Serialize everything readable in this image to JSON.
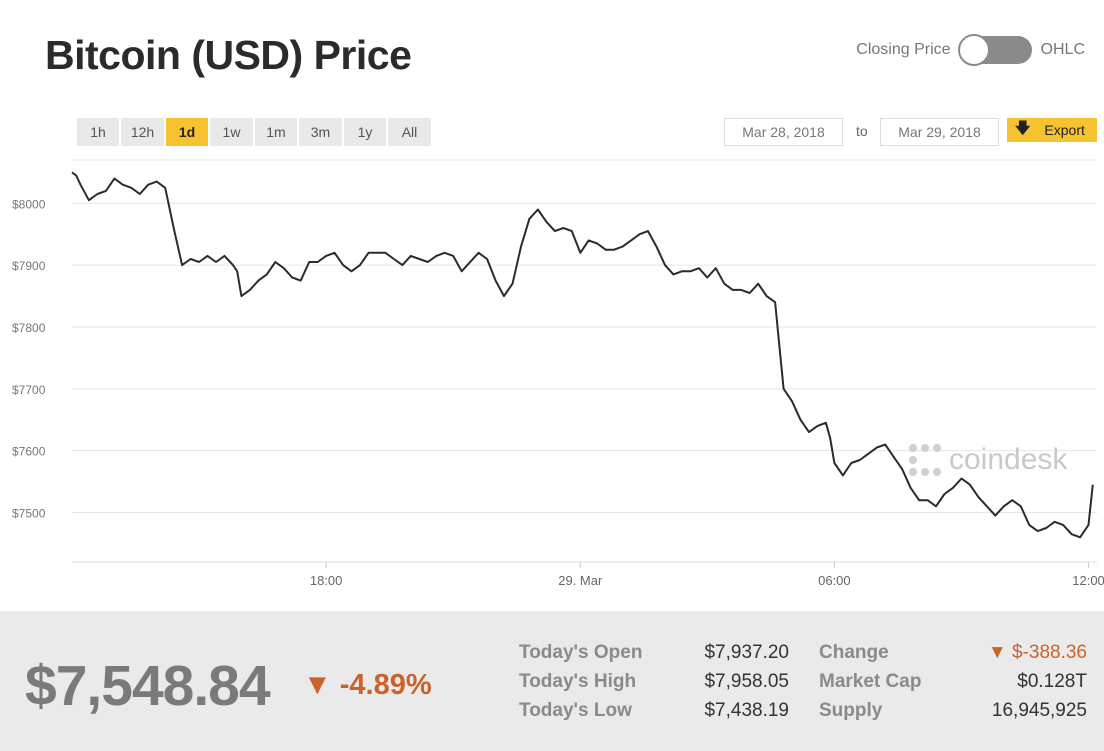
{
  "header": {
    "title": "Bitcoin (USD) Price",
    "toggle_left": "Closing Price",
    "toggle_right": "OHLC"
  },
  "ranges": [
    "1h",
    "12h",
    "1d",
    "1w",
    "1m",
    "3m",
    "1y",
    "All"
  ],
  "active_range": "1d",
  "date_from": "Mar 28, 2018",
  "date_to_label": "to",
  "date_to": "Mar 29, 2018",
  "export_label": "Export",
  "watermark": "coindesk",
  "colors": {
    "accent": "#f7c230",
    "negative": "#c9632a",
    "line": "#2b2b2b"
  },
  "chart_data": {
    "type": "line",
    "y_ticks": [
      "$8000",
      "$7900",
      "$7800",
      "$7700",
      "$7600",
      "$7500"
    ],
    "x_ticks": [
      "18:00",
      "29. Mar",
      "06:00",
      "12:00"
    ],
    "ylim": [
      7420,
      8070
    ],
    "x_range_hours": [
      0,
      24.2
    ],
    "x_tick_hours": [
      6,
      12,
      18,
      24
    ],
    "series": [
      {
        "x_hours": [
          0,
          0.1,
          0.2,
          0.4,
          0.6,
          0.8,
          1.0,
          1.2,
          1.4,
          1.6,
          1.8,
          2.0,
          2.2,
          2.4,
          2.6,
          2.8,
          3.0,
          3.2,
          3.4,
          3.6,
          3.8,
          3.9,
          4.0,
          4.2,
          4.4,
          4.6,
          4.8,
          5.0,
          5.2,
          5.4,
          5.6,
          5.8,
          6.0,
          6.2,
          6.4,
          6.6,
          6.8,
          7.0,
          7.2,
          7.4,
          7.6,
          7.8,
          8.0,
          8.2,
          8.4,
          8.6,
          8.8,
          9.0,
          9.2,
          9.4,
          9.6,
          9.8,
          10.0,
          10.2,
          10.4,
          10.6,
          10.8,
          11.0,
          11.2,
          11.4,
          11.6,
          11.8,
          12.0,
          12.2,
          12.4,
          12.6,
          12.8,
          13.0,
          13.2,
          13.4,
          13.6,
          13.8,
          14.0,
          14.2,
          14.4,
          14.6,
          14.8,
          15.0,
          15.2,
          15.4,
          15.6,
          15.8,
          16.0,
          16.2,
          16.4,
          16.6,
          16.8,
          17.0,
          17.2,
          17.4,
          17.6,
          17.8,
          17.9,
          18.0,
          18.2,
          18.4,
          18.6,
          18.8,
          19.0,
          19.2,
          19.4,
          19.6,
          19.8,
          20.0,
          20.2,
          20.4,
          20.6,
          20.8,
          21.0,
          21.2,
          21.4,
          21.6,
          21.8,
          22.0,
          22.2,
          22.4,
          22.6,
          22.8,
          23.0,
          23.2,
          23.4,
          23.6,
          23.8,
          24.0,
          24.1
        ],
        "values": [
          8050,
          8045,
          8030,
          8005,
          8015,
          8020,
          8040,
          8030,
          8025,
          8015,
          8030,
          8035,
          8025,
          7960,
          7900,
          7910,
          7905,
          7915,
          7905,
          7915,
          7900,
          7890,
          7850,
          7860,
          7875,
          7885,
          7905,
          7895,
          7880,
          7875,
          7905,
          7905,
          7915,
          7920,
          7900,
          7890,
          7900,
          7920,
          7920,
          7920,
          7910,
          7900,
          7915,
          7910,
          7905,
          7915,
          7920,
          7915,
          7890,
          7905,
          7920,
          7910,
          7875,
          7850,
          7870,
          7930,
          7975,
          7990,
          7970,
          7955,
          7960,
          7955,
          7920,
          7940,
          7935,
          7925,
          7925,
          7930,
          7940,
          7950,
          7955,
          7930,
          7900,
          7885,
          7890,
          7890,
          7895,
          7880,
          7895,
          7870,
          7860,
          7860,
          7855,
          7870,
          7850,
          7840,
          7700,
          7680,
          7650,
          7630,
          7640,
          7645,
          7620,
          7580,
          7560,
          7580,
          7585,
          7595,
          7605,
          7610,
          7590,
          7570,
          7540,
          7520,
          7520,
          7510,
          7530,
          7540,
          7555,
          7545,
          7525,
          7510,
          7495,
          7510,
          7520,
          7510,
          7480,
          7470,
          7475,
          7485,
          7480,
          7465,
          7460,
          7480,
          7545
        ]
      }
    ]
  },
  "footer": {
    "price": "$7,548.84",
    "change_pct": "-4.89%",
    "open_label": "Today's Open",
    "open_value": "$7,937.20",
    "high_label": "Today's High",
    "high_value": "$7,958.05",
    "low_label": "Today's Low",
    "low_value": "$7,438.19",
    "change_label": "Change",
    "change_value": "$-388.36",
    "cap_label": "Market Cap",
    "cap_value": "$0.128T",
    "supply_label": "Supply",
    "supply_value": "16,945,925"
  }
}
